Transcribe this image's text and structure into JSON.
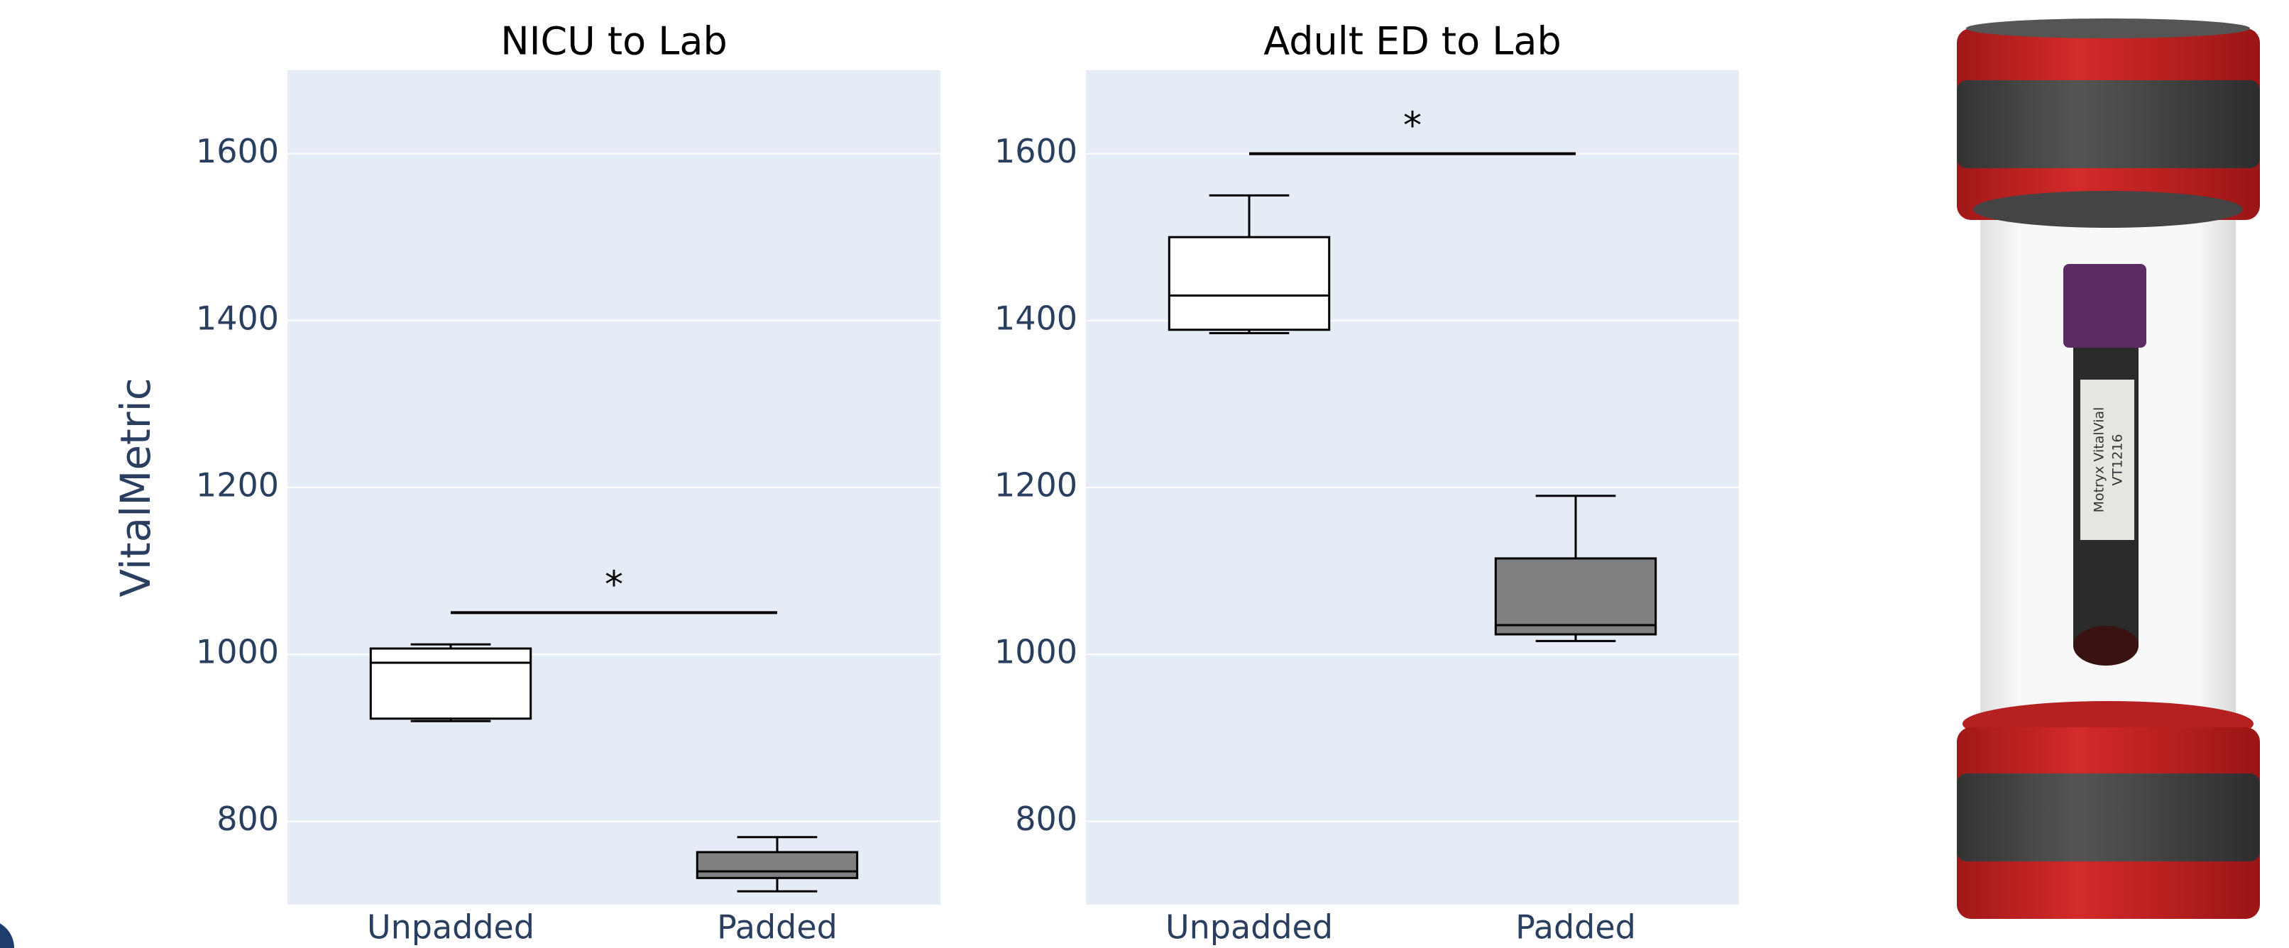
{
  "chart_data": [
    {
      "type": "box",
      "title": "NICU to Lab",
      "y_label": "VitalMetric",
      "categories": [
        "Unpadded",
        "Padded"
      ],
      "colors": [
        "#ffffff",
        "#808080"
      ],
      "min": [
        920,
        716
      ],
      "q1": [
        923,
        732
      ],
      "median": [
        990,
        740
      ],
      "q3": [
        1007,
        763
      ],
      "max": [
        1012,
        781
      ],
      "significance": {
        "label": "*",
        "y": 1050
      },
      "ylim": [
        700,
        1700
      ],
      "yticks": [
        800,
        1000,
        1200,
        1400,
        1600
      ],
      "grid": true
    },
    {
      "type": "box",
      "title": "Adult ED to Lab",
      "categories": [
        "Unpadded",
        "Padded"
      ],
      "colors": [
        "#ffffff",
        "#808080"
      ],
      "min": [
        1385,
        1016
      ],
      "q1": [
        1389,
        1024
      ],
      "median": [
        1430,
        1035
      ],
      "q3": [
        1500,
        1115
      ],
      "max": [
        1550,
        1190
      ],
      "significance": {
        "label": "*",
        "y": 1600
      },
      "ylim": [
        700,
        1700
      ],
      "yticks": [
        800,
        1000,
        1200,
        1400,
        1600
      ],
      "grid": true
    }
  ],
  "illustration": {
    "label_line1": "Motryx VitalVial",
    "label_line2": "VT1216"
  }
}
